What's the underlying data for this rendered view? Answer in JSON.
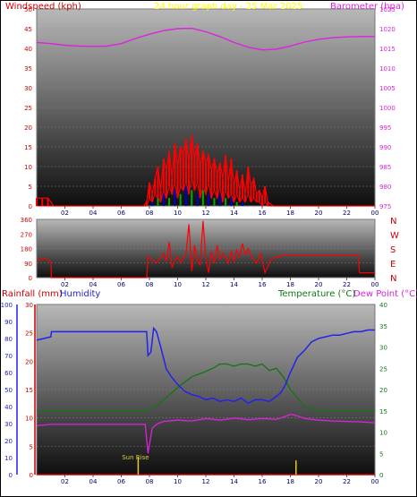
{
  "colors": {
    "windspeed": "#ff0000",
    "gust_dark": "#0000cc",
    "gust_green": "#00aa00",
    "barometer": "#dd22dd",
    "direction": "#ff0000",
    "humidity": "#2222ee",
    "temperature": "#117711",
    "dewpoint": "#dd22dd",
    "rainfall": "#cc0000",
    "title": "#ffff00",
    "sunrise": "#ddcc33"
  },
  "chart_data": [
    {
      "type": "line",
      "title": "24 hour graph day - 25 Mar 2025",
      "ylabel": "Windspeed (kph)",
      "y2label": "Barometer (hpa)",
      "ylim": [
        0,
        50
      ],
      "y_ticks": [
        "0",
        "5",
        "10",
        "15",
        "20",
        "25",
        "30",
        "35",
        "40",
        "45",
        "50"
      ],
      "y2lim": [
        975,
        1025
      ],
      "y2_ticks": [
        "975",
        "980",
        "985",
        "990",
        "995",
        "1000",
        "1005",
        "1010",
        "1015",
        "1020",
        "1025"
      ],
      "xlim": [
        0,
        24
      ],
      "x_ticks": [
        "02",
        "04",
        "06",
        "08",
        "10",
        "12",
        "14",
        "16",
        "18",
        "20",
        "22",
        "00"
      ],
      "series": [
        {
          "name": "Windspeed (kph)",
          "axis": "left",
          "x": [
            0.0,
            0.4,
            0.8,
            1.2,
            6.0,
            7.6,
            7.8,
            8.0,
            8.2,
            8.4,
            8.6,
            8.8,
            9.0,
            9.2,
            9.4,
            9.6,
            9.8,
            10.0,
            10.2,
            10.4,
            10.6,
            10.8,
            11.0,
            11.2,
            11.4,
            11.6,
            11.8,
            12.0,
            12.2,
            12.4,
            12.6,
            12.8,
            13.0,
            13.2,
            13.4,
            13.6,
            13.8,
            14.0,
            14.2,
            14.4,
            14.6,
            14.8,
            15.0,
            15.2,
            15.4,
            15.6,
            15.8,
            16.0,
            16.2,
            16.4,
            16.8,
            17.2,
            20.0,
            24.0
          ],
          "values": [
            2,
            2,
            2,
            0,
            0,
            0,
            1,
            6,
            3,
            7,
            10,
            4,
            12,
            9,
            14,
            7,
            16,
            10,
            15,
            13,
            17,
            11,
            18,
            12,
            16,
            10,
            14,
            11,
            13,
            9,
            12,
            8,
            11,
            7,
            13,
            6,
            12,
            5,
            9,
            4,
            8,
            3,
            10,
            5,
            7,
            3,
            4,
            2,
            5,
            1,
            0,
            0,
            0,
            0
          ],
          "values_low": [
            0,
            0,
            0,
            0,
            0,
            0,
            0,
            2,
            1,
            3,
            2,
            1,
            4,
            2,
            5,
            3,
            6,
            2,
            5,
            4,
            6,
            3,
            7,
            4,
            6,
            2,
            5,
            3,
            6,
            2,
            4,
            2,
            5,
            1,
            4,
            2,
            3,
            1,
            3,
            1,
            2,
            1,
            3,
            1,
            2,
            1,
            1,
            0,
            1,
            0,
            0,
            0,
            0,
            0
          ]
        },
        {
          "name": "Gust",
          "axis": "left",
          "x": [
            8.2,
            8.6,
            9.0,
            9.4,
            9.8,
            10.2,
            10.6,
            11.0,
            11.4,
            11.8,
            12.2,
            12.6,
            13.0,
            13.4,
            13.8,
            14.2,
            14.6,
            15.0
          ],
          "values": [
            1,
            2,
            3,
            2,
            4,
            3,
            5,
            4,
            3,
            4,
            3,
            2,
            3,
            2,
            2,
            1,
            1,
            0
          ]
        },
        {
          "name": "Barometer (hpa)",
          "axis": "right",
          "x": [
            0,
            1,
            2,
            3,
            4,
            5,
            6,
            7,
            8,
            9,
            10,
            11,
            12,
            13,
            14,
            15,
            16,
            17,
            18,
            19,
            20,
            21,
            22,
            23,
            24
          ],
          "values": [
            1016.5,
            1016.2,
            1015.8,
            1015.6,
            1015.5,
            1015.6,
            1016.2,
            1017.5,
            1018.6,
            1019.5,
            1020.0,
            1020.1,
            1019.2,
            1018.0,
            1016.5,
            1015.3,
            1014.6,
            1014.8,
            1015.6,
            1016.6,
            1017.3,
            1017.7,
            1017.9,
            1018.0,
            1018.0
          ]
        }
      ]
    },
    {
      "type": "line",
      "ylim": [
        0,
        360
      ],
      "y_ticks": [
        "0",
        "90",
        "180",
        "270",
        "360"
      ],
      "direction_labels": [
        "N",
        "W",
        "S",
        "E",
        "N"
      ],
      "xlim": [
        0,
        24
      ],
      "x_ticks": [
        "02",
        "04",
        "06",
        "08",
        "10",
        "12",
        "14",
        "16",
        "18",
        "20",
        "22",
        "00"
      ],
      "series": [
        {
          "name": "Wind direction",
          "x": [
            0.0,
            0.6,
            1.0,
            1.05,
            5.0,
            7.8,
            7.9,
            8.2,
            8.5,
            8.8,
            9.0,
            9.2,
            9.4,
            9.6,
            9.8,
            10.0,
            10.2,
            10.4,
            10.6,
            10.8,
            11.0,
            11.2,
            11.4,
            11.6,
            11.8,
            12.0,
            12.2,
            12.4,
            12.6,
            12.8,
            13.0,
            13.2,
            13.4,
            13.6,
            13.8,
            14.0,
            14.2,
            14.4,
            14.6,
            14.8,
            15.0,
            15.3,
            15.6,
            15.9,
            16.2,
            16.6,
            17.0,
            17.2,
            17.4,
            20.0,
            22.8,
            22.9,
            24.0
          ],
          "values": [
            100,
            120,
            95,
            0,
            0,
            0,
            130,
            110,
            90,
            120,
            150,
            100,
            220,
            60,
            110,
            130,
            90,
            120,
            150,
            330,
            40,
            200,
            100,
            80,
            350,
            120,
            30,
            160,
            90,
            200,
            110,
            150,
            130,
            90,
            160,
            100,
            170,
            130,
            210,
            140,
            180,
            120,
            90,
            150,
            30,
            110,
            130,
            125,
            140,
            140,
            140,
            30,
            30
          ]
        }
      ]
    },
    {
      "type": "line",
      "ylabel": "Rainfall (mm)",
      "ylabel2": "Humidity",
      "y2label": "Temperature (°C)",
      "y2label2": "Dew Point (°C)",
      "humidity_lim": [
        0,
        100
      ],
      "humidity_ticks": [
        "0",
        "10",
        "20",
        "30",
        "40",
        "50",
        "60",
        "70",
        "80",
        "90",
        "100"
      ],
      "rain_lim": [
        0,
        30
      ],
      "rain_ticks": [
        "0",
        "5",
        "10",
        "15",
        "20",
        "25",
        "30"
      ],
      "temp_lim": [
        0,
        40
      ],
      "temp_ticks": [
        "0",
        "5",
        "10",
        "15",
        "20",
        "25",
        "30",
        "35",
        "40"
      ],
      "xlim": [
        0,
        24
      ],
      "x_ticks": [
        "02",
        "04",
        "06",
        "08",
        "10",
        "12",
        "14",
        "16",
        "18",
        "20",
        "22",
        "00"
      ],
      "annotations": [
        {
          "text": "Sun Rise",
          "x": 7.2
        }
      ],
      "markers": [
        {
          "x": 7.2,
          "value": 3
        },
        {
          "x": 18.4,
          "value": 2.5
        }
      ],
      "series": [
        {
          "name": "Humidity",
          "axis": "humidity",
          "x": [
            0.0,
            0.5,
            1.0,
            1.05,
            7.7,
            7.8,
            7.9,
            8.1,
            8.3,
            8.5,
            8.8,
            9.2,
            9.6,
            10.0,
            10.5,
            11.0,
            11.5,
            12.0,
            12.5,
            13.0,
            13.5,
            14.0,
            14.5,
            15.0,
            15.5,
            16.0,
            16.5,
            17.0,
            17.3,
            17.6,
            18.0,
            18.5,
            19.0,
            19.5,
            20.0,
            20.5,
            21.0,
            21.5,
            22.0,
            22.5,
            23.0,
            23.5,
            24.0
          ],
          "values": [
            79,
            80,
            81,
            84,
            84,
            84,
            70,
            72,
            86,
            84,
            75,
            62,
            57,
            53,
            49,
            47,
            46,
            44,
            45,
            43,
            44,
            43,
            45,
            42,
            44,
            44,
            43,
            46,
            48,
            52,
            60,
            69,
            73,
            78,
            80,
            81,
            82,
            82,
            83,
            84,
            84,
            85,
            85
          ]
        },
        {
          "name": "Temperature (°C)",
          "axis": "temp",
          "x": [
            0,
            1,
            2,
            3,
            4,
            5,
            6,
            7,
            7.8,
            8.2,
            8.8,
            9.5,
            10.2,
            11,
            11.8,
            12.5,
            13,
            13.5,
            14,
            14.5,
            15,
            15.5,
            16,
            16.5,
            17,
            17.5,
            18,
            18.5,
            19,
            20,
            21,
            22,
            23,
            24
          ],
          "values": [
            15,
            15,
            15,
            15,
            15,
            15,
            15,
            15,
            15,
            15.5,
            17,
            19,
            21,
            23,
            24,
            25,
            26,
            26,
            25.5,
            26,
            26,
            25.5,
            26,
            24.5,
            25,
            23,
            20,
            18,
            16,
            15,
            15,
            15,
            15,
            15
          ]
        },
        {
          "name": "Dew Point (°C)",
          "axis": "temp",
          "x": [
            0,
            1,
            2,
            3,
            4,
            5,
            6,
            7,
            7.7,
            7.9,
            8.2,
            8.6,
            9,
            10,
            11,
            12,
            13,
            14,
            15,
            16,
            17,
            17.5,
            18,
            18.5,
            19,
            20,
            21,
            22,
            23,
            24
          ],
          "values": [
            11.5,
            11.8,
            11.8,
            11.8,
            11.8,
            11.8,
            11.8,
            11.8,
            11.8,
            5,
            11,
            12,
            12.5,
            12.8,
            12.6,
            13.2,
            12.8,
            13.3,
            12.9,
            13.2,
            13,
            13.5,
            14.2,
            13.8,
            13.2,
            12.8,
            12.6,
            12.5,
            12.4,
            12.2
          ]
        },
        {
          "name": "Rainfall (mm)",
          "axis": "rain",
          "x": [
            0,
            24
          ],
          "values": [
            0,
            0
          ]
        }
      ]
    }
  ]
}
